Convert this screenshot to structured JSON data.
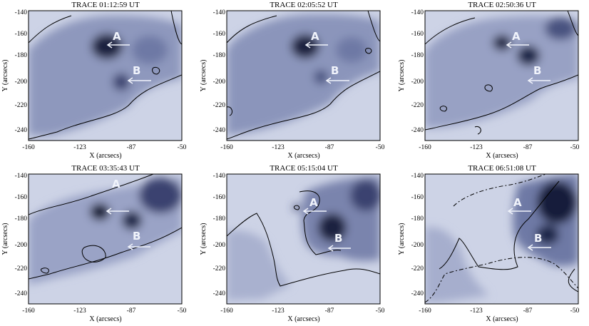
{
  "figure": {
    "panels": [
      {
        "title": "TRACE 01:12:59 UT",
        "marker_a": "A",
        "marker_b": "B"
      },
      {
        "title": "TRACE 02:05:52 UT",
        "marker_a": "A",
        "marker_b": "B"
      },
      {
        "title": "TRACE 02:50:36 UT",
        "marker_a": "A",
        "marker_b": "B"
      },
      {
        "title": "TRACE 03:35:43 UT",
        "marker_a": "A",
        "marker_b": "B"
      },
      {
        "title": "TRACE 05:15:04 UT",
        "marker_a": "A",
        "marker_b": "B"
      },
      {
        "title": "TRACE 06:51:08 UT",
        "marker_a": "A",
        "marker_b": "B"
      }
    ],
    "x_axis": {
      "label": "X (arcsecs)",
      "ticks": [
        "-160",
        "-123",
        "-87",
        "-50"
      ]
    },
    "y_axis": {
      "label": "Y (arcsecs)",
      "ticks": [
        "-140",
        "-160",
        "-180",
        "-200",
        "-220",
        "-240"
      ]
    },
    "colors": {
      "background": "#cdd3e6",
      "dark": "#1a2040",
      "contour": "#000000"
    }
  }
}
